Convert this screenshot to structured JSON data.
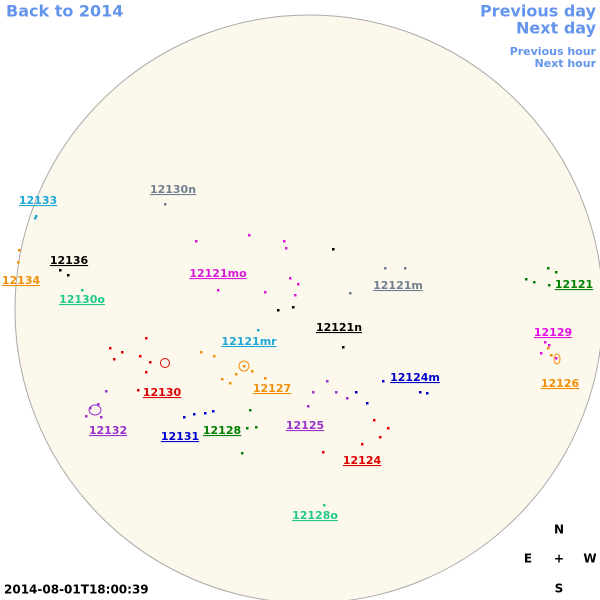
{
  "nav": {
    "back": "Back to 2014",
    "previous_day": "Previous day",
    "next_day": "Next day",
    "previous_hour": "Previous hour",
    "next_hour": "Next hour"
  },
  "regions": [
    {
      "label": "12133",
      "color": "#1fa8d8"
    },
    {
      "label": "12130n",
      "color": "#708090"
    },
    {
      "label": "12136",
      "color": "#000000"
    },
    {
      "label": "12134",
      "color": "#f0900a"
    },
    {
      "label": "12130o",
      "color": "#20c98a"
    },
    {
      "label": "12121mo",
      "color": "#d81ad8"
    },
    {
      "label": "12121m",
      "color": "#708090"
    },
    {
      "label": "12121",
      "color": "#008000"
    },
    {
      "label": "12121n",
      "color": "#000000"
    },
    {
      "label": "12121mr",
      "color": "#1fa8d8"
    },
    {
      "label": "12129",
      "color": "#e010e0"
    },
    {
      "label": "12124m",
      "color": "#0000cc"
    },
    {
      "label": "12126",
      "color": "#f0900a"
    },
    {
      "label": "12130",
      "color": "#dd0000"
    },
    {
      "label": "12127",
      "color": "#f0900a"
    },
    {
      "label": "12132",
      "color": "#9932cc"
    },
    {
      "label": "12125",
      "color": "#9932cc"
    },
    {
      "label": "12131",
      "color": "#0000cc"
    },
    {
      "label": "12128",
      "color": "#008000"
    },
    {
      "label": "12124",
      "color": "#dd0000"
    },
    {
      "label": "12128o",
      "color": "#20c98a"
    }
  ],
  "compass": {
    "north": "N",
    "east": "E",
    "center": "+",
    "west": "W",
    "south": "S"
  },
  "timestamp": "2014-08-01T18:00:39"
}
